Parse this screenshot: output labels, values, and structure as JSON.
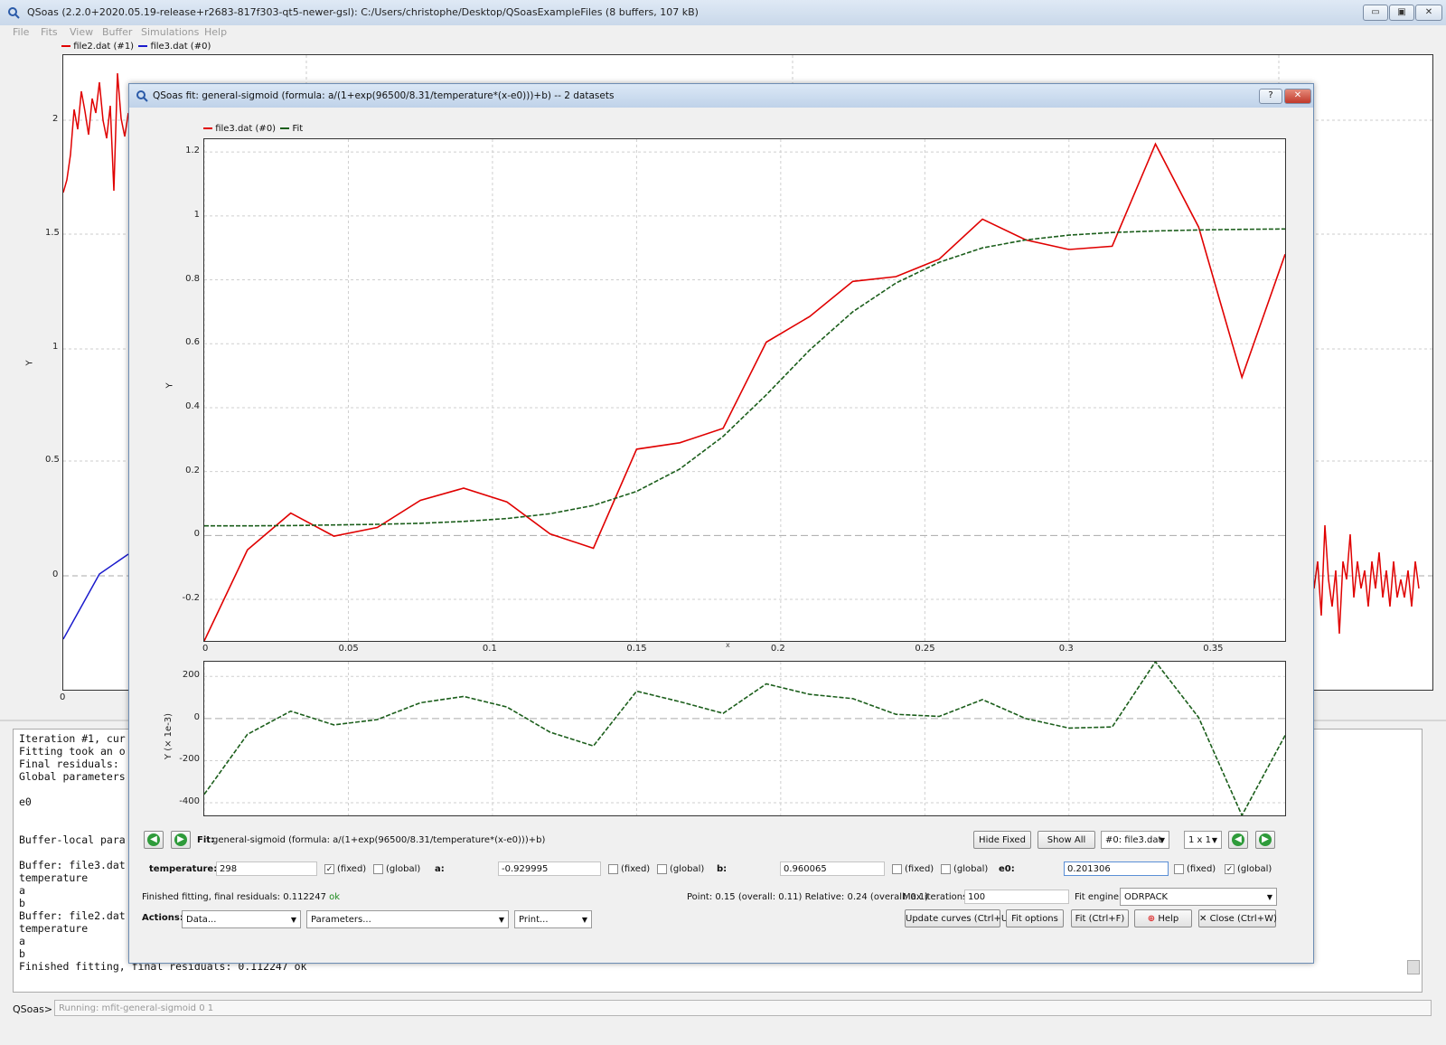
{
  "window": {
    "title": "QSoas (2.2.0+2020.05.19-release+r2683-817f303-qt5-newer-gsl): C:/Users/christophe/Desktop/QSoasExampleFiles (8 buffers, 107 kB)",
    "min": "▭",
    "max": "▣",
    "close": "✕"
  },
  "menu": [
    "File",
    "Fits",
    "View",
    "Buffer",
    "Simulations",
    "Help"
  ],
  "main_plot": {
    "legend": [
      "file2.dat (#1)",
      "file3.dat (#0)"
    ],
    "ylabel": "Y",
    "yticks": [
      "2",
      "1.5",
      "1",
      "0.5",
      "0"
    ],
    "xtick0": "0"
  },
  "console_lines": [
    "Iteration #1, cur",
    "Fitting took an o",
    "Final residuals:",
    "Global parameters",
    "",
    "e0",
    "",
    "",
    "Buffer-local para",
    "",
    "Buffer: file3.dat",
    "temperature",
    "a",
    "b",
    "Buffer: file2.dat",
    "temperature",
    "a",
    "b",
    "Finished fitting, final residuals: 0.112247 ok"
  ],
  "prompt": "QSoas>",
  "command_status": "Running: mfit-general-sigmoid 0 1",
  "dialog": {
    "title": "QSoas fit: general-sigmoid (formula:  a/(1+exp(96500/8.31/temperature*(x-e0)))+b) -- 2 datasets",
    "help_glyph": "?",
    "close_glyph": "✕",
    "fit_label": "Fit:",
    "fit_formula": "general-sigmoid (formula: a/(1+exp(96500/8.31/temperature*(x-e0)))+b)",
    "hide_fixed": "Hide Fixed",
    "show_all": "Show All",
    "dataset_select": "#0: file3.dat",
    "layout_select": "1 x 1",
    "params": [
      {
        "name": "temperature:",
        "value": "298",
        "fixed": true,
        "global": false
      },
      {
        "name": "a:",
        "value": "-0.929995",
        "fixed": false,
        "global": false
      },
      {
        "name": "b:",
        "value": "0.960065",
        "fixed": false,
        "global": false
      },
      {
        "name": "e0:",
        "value": "0.201306",
        "fixed": false,
        "global": true
      }
    ],
    "fixed_label": "(fixed)",
    "global_label": "(global)",
    "status_prefix": "Finished fitting, final residuals: 0.112247",
    "status_ok": "ok",
    "point_info": "Point: 0.15 (overall: 0.11)  Relative: 0.24 (overall: 0.1)",
    "max_iter_label": "Max iterations:",
    "max_iter": "100",
    "engine_label": "Fit engine:",
    "engine": "ODRPACK",
    "actions_label": "Actions:",
    "actions": [
      "Data...",
      "Parameters...",
      "Print..."
    ],
    "buttons": [
      "Update curves (Ctrl+U)",
      "Fit options",
      "Fit (Ctrl+F)",
      "Help",
      "Close (Ctrl+W)"
    ]
  },
  "chart_data": [
    {
      "type": "line",
      "legend": [
        "file3.dat (#0)",
        "Fit"
      ],
      "ylabel": "Y",
      "xlabel": "x",
      "xlim": [
        0,
        0.375
      ],
      "ylim": [
        -0.33,
        1.24
      ],
      "xticks": [
        0,
        0.05,
        0.1,
        0.15,
        0.2,
        0.25,
        0.3,
        0.35
      ],
      "yticks": [
        -0.2,
        0,
        0.2,
        0.4,
        0.6,
        0.8,
        1,
        1.2
      ],
      "series": [
        {
          "name": "file3.dat (#0)",
          "color": "#e00000",
          "x": [
            0,
            0.015,
            0.03,
            0.045,
            0.06,
            0.075,
            0.09,
            0.105,
            0.12,
            0.135,
            0.15,
            0.165,
            0.18,
            0.195,
            0.21,
            0.225,
            0.24,
            0.255,
            0.27,
            0.285,
            0.3,
            0.315,
            0.33,
            0.345,
            0.36,
            0.375
          ],
          "y": [
            -0.33,
            -0.045,
            0.07,
            -0.002,
            0.025,
            0.11,
            0.148,
            0.105,
            0.005,
            -0.04,
            0.27,
            0.29,
            0.335,
            0.605,
            0.685,
            0.795,
            0.81,
            0.865,
            0.99,
            0.925,
            0.895,
            0.905,
            1.225,
            0.965,
            0.495,
            0.88
          ]
        },
        {
          "name": "Fit",
          "color": "#1b5e1b",
          "x": [
            0,
            0.015,
            0.03,
            0.045,
            0.06,
            0.075,
            0.09,
            0.105,
            0.12,
            0.135,
            0.15,
            0.165,
            0.18,
            0.195,
            0.21,
            0.225,
            0.24,
            0.255,
            0.27,
            0.285,
            0.3,
            0.315,
            0.33,
            0.345,
            0.36,
            0.375
          ],
          "y": [
            0.03,
            0.03,
            0.031,
            0.033,
            0.035,
            0.038,
            0.044,
            0.053,
            0.068,
            0.094,
            0.138,
            0.208,
            0.31,
            0.44,
            0.58,
            0.7,
            0.79,
            0.855,
            0.9,
            0.925,
            0.94,
            0.948,
            0.953,
            0.956,
            0.958,
            0.959
          ]
        }
      ]
    },
    {
      "type": "line",
      "ylabel": "Y (× 1e-3)",
      "xlim": [
        0,
        0.375
      ],
      "ylim": [
        -460,
        270
      ],
      "yticks": [
        -400,
        -200,
        0,
        200
      ],
      "series": [
        {
          "name": "residuals",
          "color": "#1b5e1b",
          "x": [
            0,
            0.015,
            0.03,
            0.045,
            0.06,
            0.075,
            0.09,
            0.105,
            0.12,
            0.135,
            0.15,
            0.165,
            0.18,
            0.195,
            0.21,
            0.225,
            0.24,
            0.255,
            0.27,
            0.285,
            0.3,
            0.315,
            0.33,
            0.345,
            0.36,
            0.375
          ],
          "y": [
            -360,
            -75,
            35,
            -30,
            -5,
            75,
            105,
            55,
            -65,
            -130,
            130,
            80,
            25,
            165,
            115,
            95,
            20,
            10,
            90,
            0,
            -45,
            -40,
            270,
            5,
            -460,
            -80
          ]
        }
      ]
    }
  ]
}
